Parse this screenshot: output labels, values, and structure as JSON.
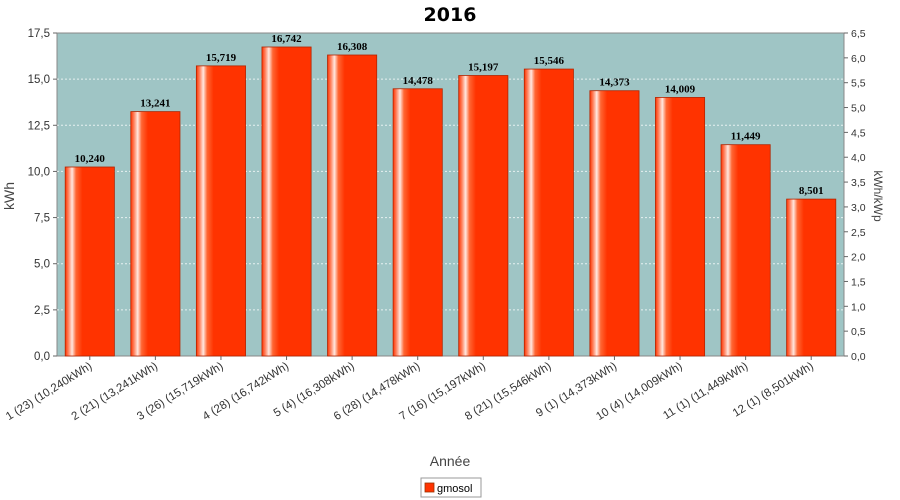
{
  "chart_data": {
    "type": "bar",
    "title": "2016",
    "xlabel": "Année",
    "ylabel": "kWh",
    "y2label": "kWh/kWp",
    "ylim": [
      0,
      17.5
    ],
    "yticks": [
      "0,0",
      "2,5",
      "5,0",
      "7,5",
      "10,0",
      "12,5",
      "15,0",
      "17,5"
    ],
    "y2lim": [
      0,
      6.5
    ],
    "y2ticks": [
      "0,0",
      "0,5",
      "1,0",
      "1,5",
      "2,0",
      "2,5",
      "3,0",
      "3,5",
      "4,0",
      "4,5",
      "5,0",
      "5,5",
      "6,0",
      "6,5"
    ],
    "categories": [
      "1 (23)  (10,240kWh)",
      "2 (21)  (13,241kWh)",
      "3 (26)  (15,719kWh)",
      "4 (28)  (16,742kWh)",
      "5 (4)  (16,308kWh)",
      "6 (28)  (14,478kWh)",
      "7 (16)  (15,197kWh)",
      "8 (21)  (15,546kWh)",
      "9 (1)  (14,373kWh)",
      "10 (4)  (14,009kWh)",
      "11 (1)  (11,449kWh)",
      "12 (1)  (8,501kWh)"
    ],
    "series": [
      {
        "name": "gmosol",
        "values": [
          10.24,
          13.241,
          15.719,
          16.742,
          16.308,
          14.478,
          15.197,
          15.546,
          14.373,
          14.009,
          11.449,
          8.501
        ],
        "labels": [
          "10,240",
          "13,241",
          "15,719",
          "16,742",
          "16,308",
          "14,478",
          "15,197",
          "15,546",
          "14,373",
          "14,009",
          "11,449",
          "8,501"
        ],
        "color": "#ff3300"
      }
    ],
    "plot_background": "#9fc5c5",
    "grid": true,
    "legend_position": "bottom"
  }
}
